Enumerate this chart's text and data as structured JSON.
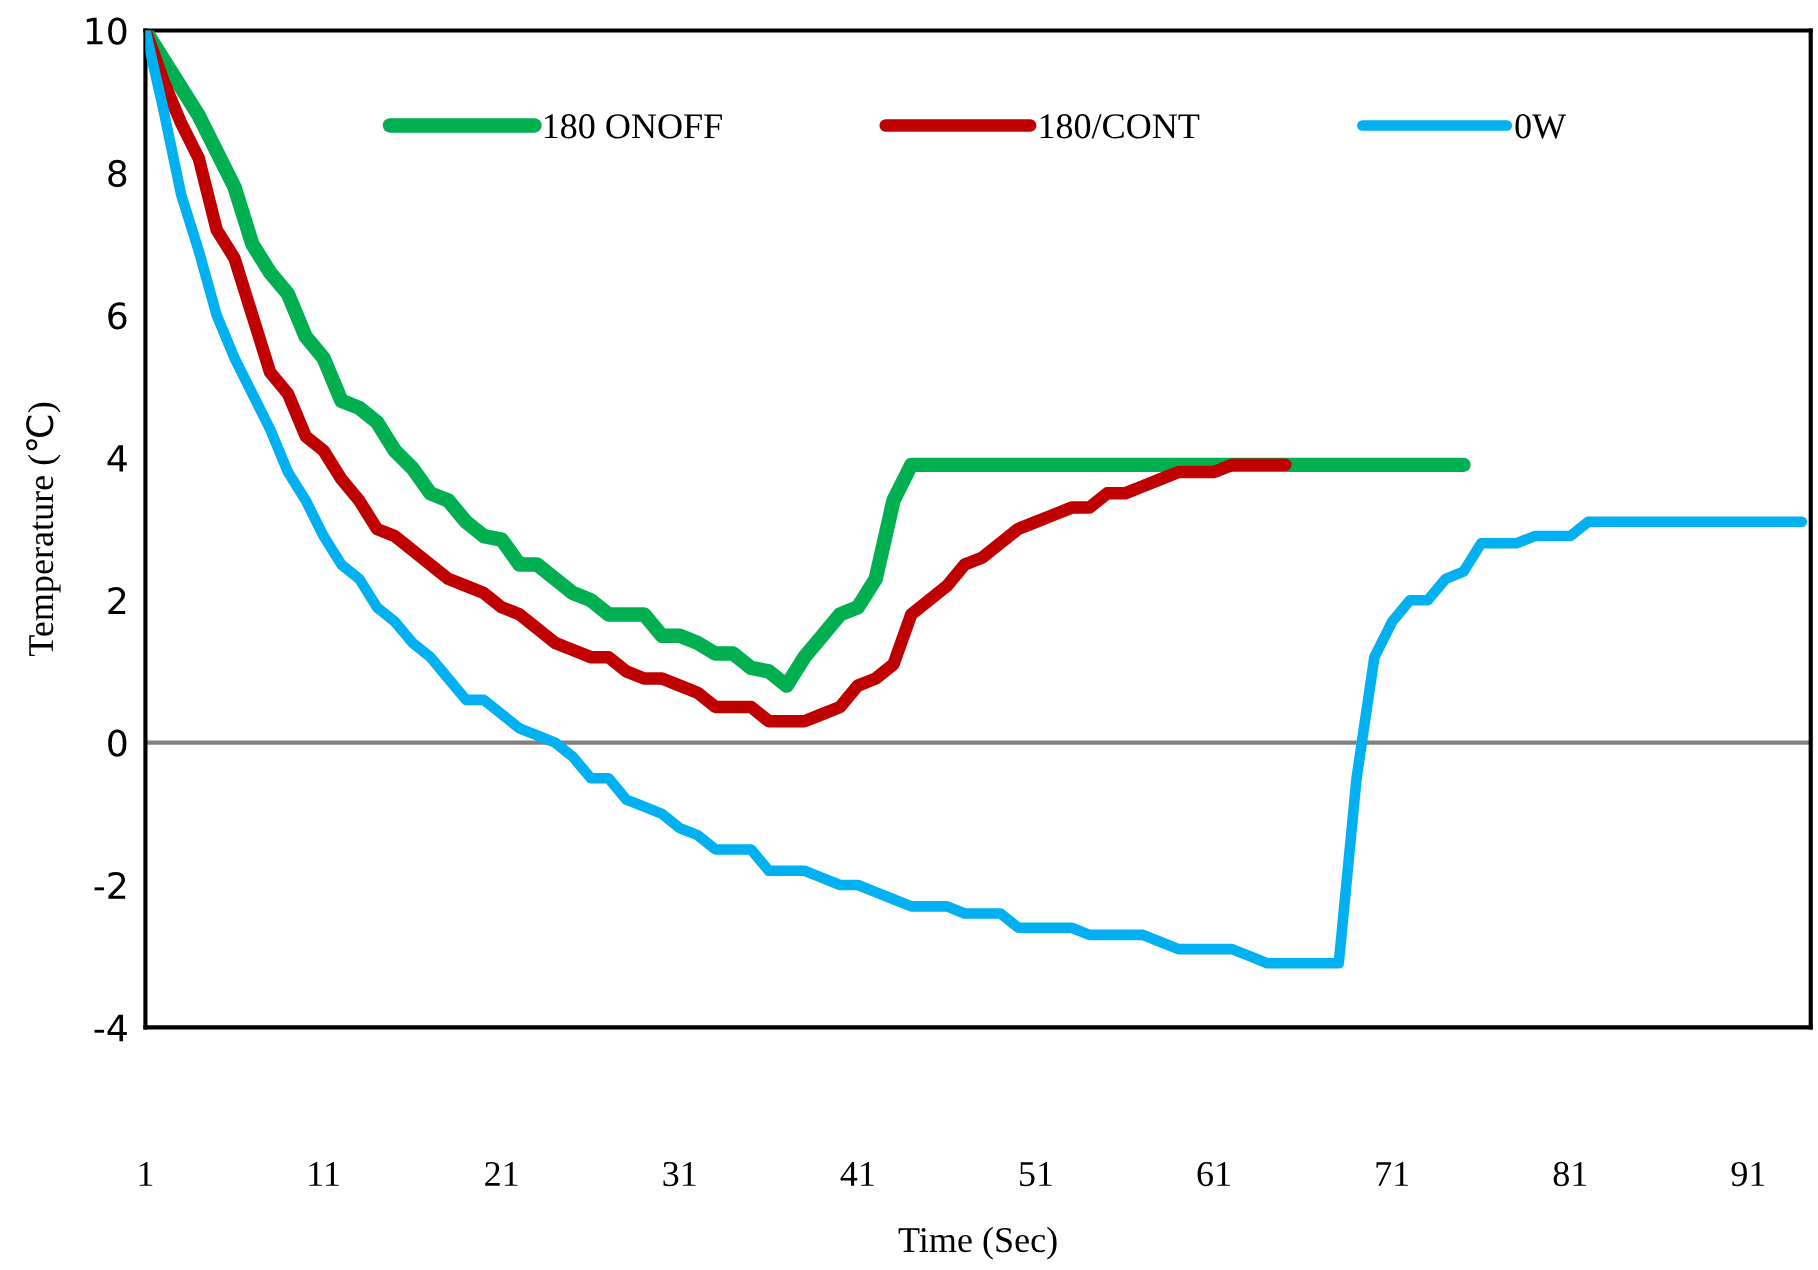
{
  "chart_data": {
    "type": "line",
    "xlabel": "Time (Sec)",
    "ylabel": "Temperature (℃)",
    "x": [
      1,
      2,
      3,
      4,
      5,
      6,
      7,
      8,
      9,
      10,
      11,
      12,
      13,
      14,
      15,
      16,
      17,
      18,
      19,
      20,
      21,
      22,
      23,
      24,
      25,
      26,
      27,
      28,
      29,
      30,
      31,
      32,
      33,
      34,
      35,
      36,
      37,
      38,
      39,
      40,
      41,
      42,
      43,
      44,
      45,
      46,
      47,
      48,
      49,
      50,
      51,
      52,
      53,
      54,
      55,
      56,
      57,
      58,
      59,
      60,
      61,
      62,
      63,
      64,
      65,
      66,
      67,
      68,
      69,
      70,
      71,
      72,
      73,
      74,
      75,
      76,
      77,
      78,
      79,
      80,
      81,
      82,
      83,
      84,
      85,
      86,
      87,
      88,
      89,
      90,
      91,
      92,
      93,
      94
    ],
    "series": [
      {
        "name": "180 ONOFF",
        "color": "#00b050",
        "values": [
          10,
          9.6,
          9.2,
          8.8,
          8.3,
          7.8,
          7.0,
          6.6,
          6.3,
          5.7,
          5.4,
          4.8,
          4.7,
          4.5,
          4.1,
          3.85,
          3.5,
          3.4,
          3.1,
          2.9,
          2.85,
          2.5,
          2.5,
          2.3,
          2.1,
          2.0,
          1.8,
          1.8,
          1.8,
          1.5,
          1.5,
          1.4,
          1.25,
          1.25,
          1.05,
          1.0,
          0.8,
          1.2,
          1.5,
          1.8,
          1.9,
          2.3,
          3.4,
          3.9,
          3.9,
          3.9,
          3.9,
          3.9,
          3.9,
          3.9,
          3.9,
          3.9,
          3.9,
          3.9,
          3.9,
          3.9,
          3.9,
          3.9,
          3.9,
          3.9,
          3.9,
          3.9,
          3.9,
          3.9,
          3.9,
          3.9,
          3.9,
          3.9,
          3.9,
          3.9,
          3.9,
          3.9,
          3.9,
          3.9,
          3.9,
          null,
          null,
          null,
          null,
          null,
          null,
          null,
          null,
          null,
          null,
          null,
          null,
          null,
          null,
          null,
          null,
          null,
          null,
          null
        ]
      },
      {
        "name": "180/CONT",
        "color": "#c00000",
        "values": [
          10,
          9.3,
          8.7,
          8.2,
          7.2,
          6.8,
          6.0,
          5.2,
          4.9,
          4.3,
          4.1,
          3.7,
          3.4,
          3.0,
          2.9,
          2.7,
          2.5,
          2.3,
          2.2,
          2.1,
          1.9,
          1.8,
          1.6,
          1.4,
          1.3,
          1.2,
          1.2,
          1.0,
          0.9,
          0.9,
          0.8,
          0.7,
          0.5,
          0.5,
          0.5,
          0.3,
          0.3,
          0.3,
          0.4,
          0.5,
          0.8,
          0.9,
          1.1,
          1.8,
          2.0,
          2.2,
          2.5,
          2.6,
          2.8,
          3.0,
          3.1,
          3.2,
          3.3,
          3.3,
          3.5,
          3.5,
          3.6,
          3.7,
          3.8,
          3.8,
          3.8,
          3.9,
          3.9,
          3.9,
          3.9,
          null,
          null,
          null,
          null,
          null,
          null,
          null,
          null,
          null,
          null,
          null,
          null,
          null,
          null,
          null,
          null,
          null,
          null,
          null,
          null,
          null,
          null,
          null,
          null,
          null,
          null,
          null,
          null,
          null
        ]
      },
      {
        "name": "0W",
        "color": "#00b0f0",
        "values": [
          10,
          8.9,
          7.7,
          6.9,
          6.0,
          5.4,
          4.9,
          4.4,
          3.8,
          3.4,
          2.9,
          2.5,
          2.3,
          1.9,
          1.7,
          1.4,
          1.2,
          0.9,
          0.6,
          0.6,
          0.4,
          0.2,
          0.1,
          0.0,
          -0.2,
          -0.5,
          -0.5,
          -0.8,
          -0.9,
          -1.0,
          -1.2,
          -1.3,
          -1.5,
          -1.5,
          -1.5,
          -1.8,
          -1.8,
          -1.8,
          -1.9,
          -2.0,
          -2.0,
          -2.1,
          -2.2,
          -2.3,
          -2.3,
          -2.3,
          -2.4,
          -2.4,
          -2.4,
          -2.6,
          -2.6,
          -2.6,
          -2.6,
          -2.7,
          -2.7,
          -2.7,
          -2.7,
          -2.8,
          -2.9,
          -2.9,
          -2.9,
          -2.9,
          -3.0,
          -3.1,
          -3.1,
          -3.1,
          -3.1,
          -3.1,
          -0.5,
          1.2,
          1.7,
          2.0,
          2.0,
          2.3,
          2.4,
          2.8,
          2.8,
          2.8,
          2.9,
          2.9,
          2.9,
          3.1,
          3.1,
          3.1,
          3.1,
          3.1,
          3.1,
          3.1,
          3.1,
          3.1,
          3.1,
          3.1,
          3.1,
          3.1
        ]
      }
    ],
    "xlim": [
      1,
      94.5
    ],
    "xticks": [
      1,
      11,
      21,
      31,
      41,
      51,
      61,
      71,
      81,
      91
    ],
    "ylim": [
      -4,
      10
    ],
    "yticks": [
      -4,
      -2,
      0,
      2,
      4,
      6,
      8,
      10
    ],
    "ref_lines": [
      {
        "axis": "y",
        "value": 0,
        "color": "#808080"
      }
    ],
    "legend": "top",
    "grid": false,
    "marker": "none",
    "line_style": "solid"
  }
}
